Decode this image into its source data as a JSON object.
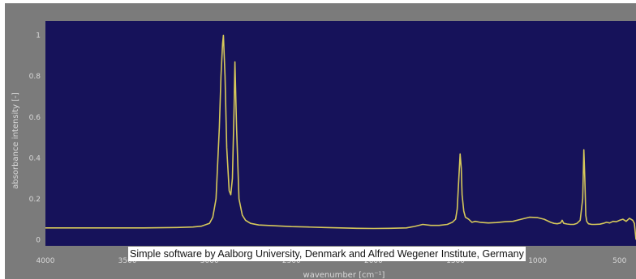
{
  "caption": "Simple software by Aalborg University, Denmark and Alfred Wegener Institute, Germany",
  "colors": {
    "plot_background": "#16125a",
    "frame_background": "#7b7b7b",
    "line": "#d6c85a",
    "tick_text": "#d9d9d9"
  },
  "chart_data": {
    "type": "line",
    "title": "",
    "xlabel": "wavenumber [cm⁻¹]",
    "ylabel": "absorbance intensity [-]",
    "xlim": [
      4000,
      400
    ],
    "ylim": [
      -0.03,
      1.07
    ],
    "x_reversed": true,
    "grid": false,
    "x_ticks": [
      4000,
      3500,
      3000,
      2500,
      2000,
      1500,
      1000,
      500
    ],
    "x_tick_labels": [
      "4000",
      "3500",
      "3000",
      "2500",
      "2000",
      "1500",
      "1000",
      "500"
    ],
    "y_ticks": [
      0,
      0.2,
      0.4,
      0.6,
      0.8,
      1
    ],
    "y_tick_labels": [
      "0",
      "0.2",
      "0.4",
      "0.6",
      "0.8",
      "1"
    ],
    "series": [
      {
        "x": [
          4000,
          3800,
          3600,
          3400,
          3200,
          3100,
          3050,
          3000,
          2980,
          2960,
          2940,
          2930,
          2920,
          2915,
          2905,
          2895,
          2880,
          2870,
          2860,
          2850,
          2845,
          2835,
          2820,
          2800,
          2780,
          2750,
          2700,
          2600,
          2500,
          2400,
          2300,
          2200,
          2100,
          2000,
          1900,
          1800,
          1750,
          1700,
          1650,
          1600,
          1550,
          1520,
          1500,
          1490,
          1480,
          1472,
          1465,
          1460,
          1450,
          1440,
          1420,
          1400,
          1380,
          1350,
          1300,
          1250,
          1200,
          1150,
          1100,
          1050,
          1000,
          960,
          920,
          900,
          880,
          860,
          850,
          840,
          820,
          800,
          780,
          760,
          740,
          725,
          718,
          712,
          706,
          700,
          690,
          670,
          650,
          620,
          600,
          580,
          560,
          540,
          520,
          500,
          480,
          460,
          440,
          420,
          410,
          400
        ],
        "y": [
          0.058,
          0.058,
          0.058,
          0.058,
          0.06,
          0.062,
          0.066,
          0.08,
          0.11,
          0.2,
          0.55,
          0.8,
          0.96,
          1.0,
          0.8,
          0.45,
          0.24,
          0.22,
          0.3,
          0.65,
          0.87,
          0.55,
          0.2,
          0.12,
          0.095,
          0.08,
          0.072,
          0.068,
          0.064,
          0.062,
          0.06,
          0.058,
          0.056,
          0.055,
          0.056,
          0.058,
          0.065,
          0.075,
          0.07,
          0.07,
          0.075,
          0.085,
          0.1,
          0.15,
          0.3,
          0.42,
          0.35,
          0.22,
          0.14,
          0.11,
          0.1,
          0.085,
          0.09,
          0.085,
          0.082,
          0.084,
          0.088,
          0.09,
          0.1,
          0.11,
          0.108,
          0.1,
          0.085,
          0.08,
          0.078,
          0.082,
          0.095,
          0.08,
          0.077,
          0.075,
          0.075,
          0.08,
          0.095,
          0.2,
          0.44,
          0.3,
          0.12,
          0.09,
          0.078,
          0.075,
          0.075,
          0.076,
          0.08,
          0.085,
          0.082,
          0.09,
          0.088,
          0.095,
          0.1,
          0.09,
          0.105,
          0.095,
          0.08,
          0.0
        ]
      }
    ]
  }
}
